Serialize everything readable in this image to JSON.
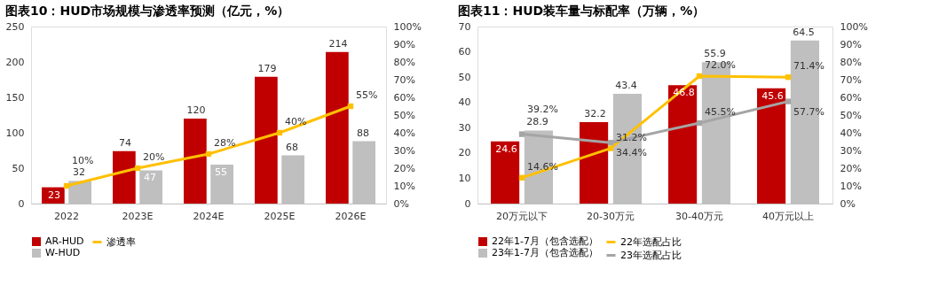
{
  "chart_data": [
    {
      "type": "bar",
      "title": "图表10：HUD市场规模与渗透率预测（亿元，%）",
      "categories": [
        "2022",
        "2023E",
        "2024E",
        "2025E",
        "2026E"
      ],
      "series": [
        {
          "name": "AR-HUD",
          "color": "#c00000",
          "values": [
            23,
            74,
            120,
            179,
            214
          ],
          "value_labels": [
            "23",
            "74",
            "120",
            "179",
            "214"
          ]
        },
        {
          "name": "W-HUD",
          "color": "#bfbfbf",
          "values": [
            32,
            47,
            55,
            68,
            88
          ],
          "value_labels": [
            "32",
            "47",
            "55",
            "68",
            "88"
          ]
        },
        {
          "name": "渗透率",
          "type": "line",
          "axis": "y2",
          "color": "#ffc000",
          "values": [
            10,
            20,
            28,
            40,
            55
          ],
          "value_labels": [
            "10%",
            "20%",
            "28%",
            "40%",
            "55%"
          ]
        }
      ],
      "ylim": [
        0,
        250
      ],
      "yticks": [
        0,
        50,
        100,
        150,
        200,
        250
      ],
      "y2lim": [
        0,
        100
      ],
      "y2ticks": [
        {
          "value": 0,
          "label": "0%"
        },
        {
          "value": 10,
          "label": "10%"
        },
        {
          "value": 20,
          "label": "20%"
        },
        {
          "value": 30,
          "label": "30%"
        },
        {
          "value": 40,
          "label": "40%"
        },
        {
          "value": 50,
          "label": "50%"
        },
        {
          "value": 60,
          "label": "60%"
        },
        {
          "value": 70,
          "label": "70%"
        },
        {
          "value": 80,
          "label": "80%"
        },
        {
          "value": 90,
          "label": "90%"
        },
        {
          "value": 100,
          "label": "100%"
        }
      ],
      "marker": "square",
      "legend": "bottom",
      "grid": false
    },
    {
      "type": "bar",
      "title": "图表11：HUD装车量与标配率（万辆，%）",
      "categories": [
        "20万元以下",
        "20-30万元",
        "30-40万元",
        "40万元以上"
      ],
      "series": [
        {
          "name": "22年1-7月（包含选配）",
          "color": "#c00000",
          "values": [
            24.6,
            32.2,
            46.8,
            45.6
          ],
          "value_labels": [
            "24.6",
            "32.2",
            "46.8",
            "45.6"
          ]
        },
        {
          "name": "23年1-7月（包含选配）",
          "color": "#bfbfbf",
          "values": [
            28.9,
            43.4,
            55.9,
            64.5
          ],
          "value_labels": [
            "28.9",
            "43.4",
            "55.9",
            "64.5"
          ]
        },
        {
          "name": "22年选配占比",
          "type": "line",
          "axis": "y2",
          "color": "#ffc000",
          "values": [
            14.6,
            31.2,
            72.0,
            71.4
          ],
          "value_labels": [
            "14.6%",
            "31.2%",
            "72.0%",
            "71.4%"
          ]
        },
        {
          "name": "23年选配占比",
          "type": "line",
          "axis": "y2",
          "color": "#a5a5a5",
          "values": [
            39.2,
            34.4,
            45.5,
            57.7
          ],
          "value_labels": [
            "39.2%",
            "34.4%",
            "45.5%",
            "57.7%"
          ]
        }
      ],
      "ylim": [
        0,
        70
      ],
      "yticks": [
        0,
        10,
        20,
        30,
        40,
        50,
        60,
        70
      ],
      "y2lim": [
        0,
        100
      ],
      "y2ticks": [
        {
          "value": 0,
          "label": "0%"
        },
        {
          "value": 10,
          "label": "10%"
        },
        {
          "value": 20,
          "label": "20%"
        },
        {
          "value": 30,
          "label": "30%"
        },
        {
          "value": 40,
          "label": "40%"
        },
        {
          "value": 50,
          "label": "50%"
        },
        {
          "value": 60,
          "label": "60%"
        },
        {
          "value": 70,
          "label": "70%"
        },
        {
          "value": 80,
          "label": "80%"
        },
        {
          "value": 90,
          "label": "90%"
        },
        {
          "value": 100,
          "label": "100%"
        }
      ],
      "marker": "square",
      "legend": "bottom",
      "grid": false
    }
  ]
}
